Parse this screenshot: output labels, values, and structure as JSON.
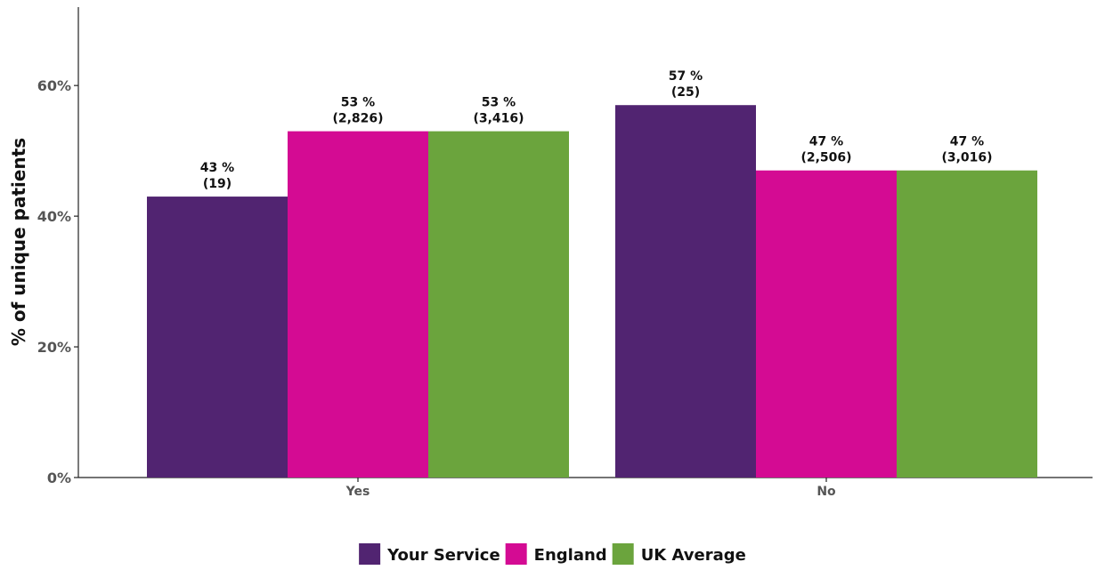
{
  "chart_data": {
    "type": "bar",
    "categories": [
      "Yes",
      "No"
    ],
    "series": [
      {
        "name": "Your Service",
        "color": "#512471",
        "values": [
          43,
          57
        ],
        "labels": [
          "43 %",
          "57 %"
        ],
        "counts": [
          "(19)",
          "(25)"
        ]
      },
      {
        "name": "England",
        "color": "#d40b93",
        "values": [
          53,
          47
        ],
        "labels": [
          "53 %",
          "47 %"
        ],
        "counts": [
          "(2,826)",
          "(2,506)"
        ]
      },
      {
        "name": "UK Average",
        "color": "#6ba43d",
        "values": [
          53,
          47
        ],
        "labels": [
          "53 %",
          "47 %"
        ],
        "counts": [
          "(3,416)",
          "(3,016)"
        ]
      }
    ],
    "ylabel": "% of unique patients",
    "xlabel": "",
    "ylim": [
      0,
      72
    ],
    "yticks": [
      0,
      20,
      40,
      60
    ],
    "ytick_labels": [
      "0%",
      "20%",
      "40%",
      "60%"
    ],
    "grid": false,
    "legend_position": "bottom"
  }
}
